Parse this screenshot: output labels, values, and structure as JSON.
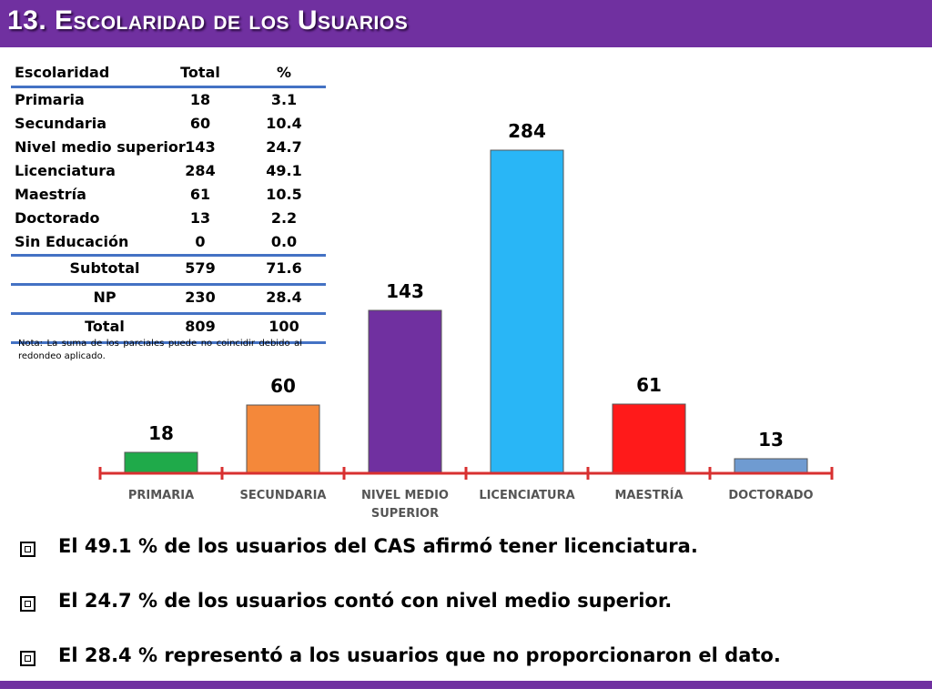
{
  "title": "13. Escolaridad de los Usuarios",
  "table": {
    "headers": [
      "Escolaridad",
      "Total",
      "%"
    ],
    "rows": [
      [
        "Primaria",
        "18",
        "3.1"
      ],
      [
        "Secundaria",
        "60",
        "10.4"
      ],
      [
        "Nivel medio superior",
        "143",
        "24.7"
      ],
      [
        "Licenciatura",
        "284",
        "49.1"
      ],
      [
        "Maestría",
        "61",
        "10.5"
      ],
      [
        "Doctorado",
        "13",
        "2.2"
      ],
      [
        "Sin Educación",
        "0",
        "0.0"
      ]
    ],
    "subtotal": [
      "Subtotal",
      "579",
      "71.6"
    ],
    "np": [
      "NP",
      "230",
      "28.4"
    ],
    "total": [
      "Total",
      "809",
      "100"
    ],
    "note": "Nota: La suma de los parciales puede no coincidir debido al redondeo aplicado."
  },
  "chart_data": {
    "type": "bar",
    "categories": [
      "PRIMARIA",
      "SECUNDARIA",
      "NIVEL MEDIO SUPERIOR",
      "LICENCIATURA",
      "MAESTRÍA",
      "DOCTORADO"
    ],
    "category_lines": [
      [
        "PRIMARIA"
      ],
      [
        "SECUNDARIA"
      ],
      [
        "NIVEL MEDIO",
        "SUPERIOR"
      ],
      [
        "LICENCIATURA"
      ],
      [
        "MAESTRÍA"
      ],
      [
        "DOCTORADO"
      ]
    ],
    "values": [
      18,
      60,
      143,
      284,
      61,
      13
    ],
    "data_labels": [
      "18",
      "60",
      "143",
      "284",
      "61",
      "13"
    ],
    "colors": [
      "#1faa4a",
      "#f4883a",
      "#7030a0",
      "#29b6f6",
      "#ff1a1a",
      "#6f9bd1"
    ],
    "axis_color": "#d83030",
    "ylim": [
      0,
      284
    ],
    "grid": false,
    "legend": "none"
  },
  "bullets": [
    "El 49.1 % de los usuarios del CAS afirmó tener licenciatura.",
    "El 24.7 % de los usuarios contó con nivel medio superior.",
    "El 28.4 % representó a los usuarios que no proporcionaron el dato."
  ]
}
